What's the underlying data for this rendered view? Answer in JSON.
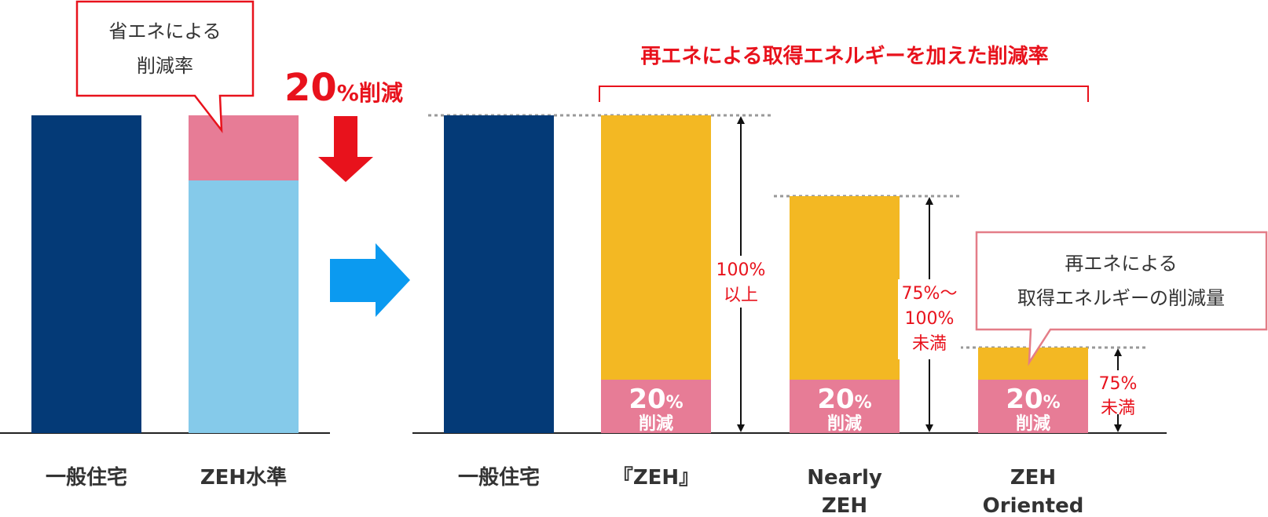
{
  "colors": {
    "navy": "#043a77",
    "pink": "#e77c96",
    "light_blue": "#85caea",
    "yellow": "#f3b823",
    "red": "#e8121c",
    "blue_arrow": "#0b9af0",
    "callout_border_red": "#e8121c",
    "callout_border_pink": "#e47d88",
    "text_dark": "#333333",
    "dotted": "#999999"
  },
  "left_panel": {
    "callout": {
      "line1": "省エネによる",
      "line2": "削減率"
    },
    "headline_value": "20",
    "headline_unit": "%削減",
    "bars": [
      {
        "label": "一般住宅"
      },
      {
        "label": "ZEH水準"
      }
    ]
  },
  "right_panel": {
    "bracket_title": "再エネによる取得エネルギーを加えた削減率",
    "callout": {
      "line1": "再エネによる",
      "line2": "取得エネルギーの削減量"
    },
    "bars": [
      {
        "label_lines": [
          "一般住宅"
        ]
      },
      {
        "label_lines": [
          "『ZEH』"
        ],
        "reduction_value": "20",
        "reduction_unit": "%",
        "reduction_word": "削減"
      },
      {
        "label_lines": [
          "Nearly",
          "ZEH"
        ],
        "reduction_value": "20",
        "reduction_unit": "%",
        "reduction_word": "削減"
      },
      {
        "label_lines": [
          "ZEH",
          "Oriented"
        ],
        "reduction_value": "20",
        "reduction_unit": "%",
        "reduction_word": "削減"
      }
    ],
    "range_labels": [
      {
        "lines": [
          "100%",
          "以上"
        ]
      },
      {
        "lines": [
          "75%〜",
          "100%",
          "未満"
        ]
      },
      {
        "lines": [
          "75%",
          "未満"
        ]
      }
    ]
  }
}
